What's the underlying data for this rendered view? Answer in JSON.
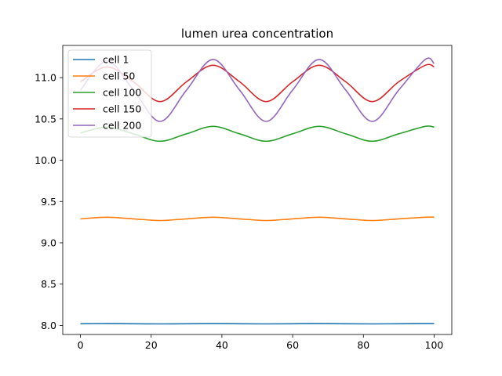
{
  "chart_data": {
    "type": "line",
    "title": "lumen urea concentration",
    "xlabel": "",
    "ylabel": "",
    "xlim": [
      -5,
      105
    ],
    "ylim": [
      7.89,
      11.39
    ],
    "xticks": [
      0,
      20,
      40,
      60,
      80,
      100
    ],
    "yticks": [
      8.0,
      8.5,
      9.0,
      9.5,
      10.0,
      10.5,
      11.0
    ],
    "ytick_labels": [
      "8.0",
      "8.5",
      "9.0",
      "9.5",
      "10.0",
      "10.5",
      "11.0"
    ],
    "legend_position": "upper-left",
    "grid": false,
    "series": [
      {
        "name": "cell 1",
        "color": "#1f77b4",
        "x": [
          0,
          7.5,
          15,
          22.5,
          30,
          37.5,
          45,
          52.5,
          60,
          67.5,
          75,
          82.5,
          90,
          97.5,
          100
        ],
        "y": [
          8.02,
          8.022,
          8.02,
          8.018,
          8.02,
          8.022,
          8.02,
          8.018,
          8.02,
          8.022,
          8.02,
          8.018,
          8.02,
          8.022,
          8.022
        ]
      },
      {
        "name": "cell 50",
        "color": "#ff7f0e",
        "x": [
          0,
          7.5,
          15,
          22.5,
          30,
          37.5,
          45,
          52.5,
          60,
          67.5,
          75,
          82.5,
          90,
          97.5,
          100
        ],
        "y": [
          9.29,
          9.31,
          9.29,
          9.27,
          9.29,
          9.31,
          9.29,
          9.27,
          9.29,
          9.31,
          9.29,
          9.27,
          9.29,
          9.31,
          9.31
        ]
      },
      {
        "name": "cell 100",
        "color": "#2ca02c",
        "x": [
          0,
          7.5,
          15,
          22.5,
          30,
          37.5,
          45,
          52.5,
          60,
          67.5,
          75,
          82.5,
          90,
          97.5,
          100
        ],
        "y": [
          10.33,
          10.4,
          10.32,
          10.23,
          10.32,
          10.41,
          10.32,
          10.23,
          10.32,
          10.41,
          10.32,
          10.23,
          10.32,
          10.41,
          10.4
        ]
      },
      {
        "name": "cell 150",
        "color": "#d62728",
        "x": [
          0,
          7.5,
          15,
          22.5,
          30,
          37.5,
          45,
          52.5,
          60,
          67.5,
          75,
          82.5,
          90,
          97.5,
          100
        ],
        "y": [
          10.95,
          11.13,
          10.95,
          10.71,
          10.95,
          11.15,
          10.95,
          10.71,
          10.95,
          11.15,
          10.95,
          10.71,
          10.95,
          11.15,
          11.13
        ]
      },
      {
        "name": "cell 200",
        "color": "#9467bd",
        "x": [
          0,
          7.5,
          15,
          22.5,
          30,
          37.5,
          45,
          52.5,
          60,
          67.5,
          75,
          82.5,
          90,
          97.5,
          100
        ],
        "y": [
          10.85,
          11.2,
          10.85,
          10.47,
          10.85,
          11.22,
          10.85,
          10.47,
          10.85,
          11.22,
          10.85,
          10.47,
          10.85,
          11.22,
          11.17
        ]
      }
    ]
  }
}
